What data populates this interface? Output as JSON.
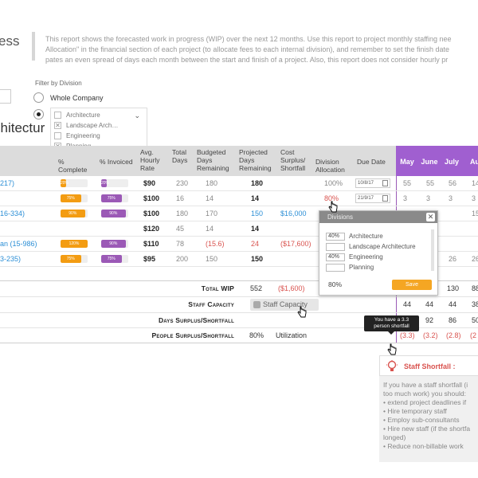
{
  "page": {
    "title": "ess",
    "description_lines": [
      "This report shows the forecasted work in progress (WIP) over the next 12 months. Use this report to project monthly staffing nee",
      "Allocation\" in the financial section of each project (to allocate fees to each internal division), and remember to set the finish date",
      "pates an even spread of days each month between the start and finish of a project. Also, this report does not consider hourly pr"
    ],
    "section_heading": "chitectur"
  },
  "filter": {
    "label": "Filter by Division",
    "whole_company": "Whole Company",
    "divisions": [
      {
        "label": "Architecture",
        "checked": false
      },
      {
        "label": "Landscape Arch…",
        "checked": true
      },
      {
        "label": "Engineering",
        "checked": false
      },
      {
        "label": "Planning",
        "checked": true
      }
    ]
  },
  "table": {
    "headers": {
      "pct_complete": "% Complete",
      "pct_invoiced": "% Invoiced",
      "hourly_rate": "Avg. Hourly Rate",
      "total_days": "Total Days",
      "budgeted_days": "Budgeted Days Remaining",
      "projected_days": "Projected Days Remaining",
      "cost_surplus": "Cost Surplus/ Shortfall",
      "division_alloc": "Division Allocation",
      "due_date": "Due Date"
    },
    "months": [
      "May",
      "June",
      "July",
      "Au"
    ],
    "rows": [
      {
        "project": "217)",
        "complete": "20%",
        "complete_val": 20,
        "invoiced": "20%",
        "invoiced_val": 20,
        "rate": "$90",
        "total": "230",
        "budgeted": "180",
        "projected": "180",
        "cost": "",
        "alloc": "100%",
        "due": "10/8/17",
        "m": [
          "55",
          "55",
          "56",
          "14"
        ]
      },
      {
        "project": "",
        "complete": "75%",
        "complete_val": 75,
        "invoiced": "75%",
        "invoiced_val": 75,
        "rate": "$100",
        "total": "16",
        "budgeted": "14",
        "projected": "14",
        "cost": "",
        "alloc": "80%",
        "due": "21/9/17",
        "m": [
          "3",
          "3",
          "3",
          "3"
        ]
      },
      {
        "project": "16-334)",
        "complete": "90%",
        "complete_val": 90,
        "invoiced": "90%",
        "invoiced_val": 90,
        "rate": "$100",
        "total": "180",
        "budgeted": "170",
        "projected": "150",
        "cost": "$16,000",
        "alloc": "",
        "due": "",
        "m": [
          "",
          "",
          "",
          "15"
        ]
      },
      {
        "project": "",
        "complete": "",
        "complete_val": 0,
        "invoiced": "",
        "invoiced_val": 0,
        "rate": "$120",
        "total": "45",
        "budgeted": "14",
        "projected": "14",
        "cost": "",
        "alloc": "",
        "due": "",
        "m": [
          "",
          "",
          "",
          ""
        ]
      },
      {
        "project": "an (15-986)",
        "complete": "120%",
        "complete_val": 100,
        "invoiced": "90%",
        "invoiced_val": 90,
        "rate": "$110",
        "total": "78",
        "budgeted": "(15.6)",
        "projected": "24",
        "cost": "($17,600)",
        "alloc": "",
        "due": "",
        "m": [
          "",
          "",
          "",
          ""
        ]
      },
      {
        "project": "3-235)",
        "complete": "75%",
        "complete_val": 75,
        "invoiced": "75%",
        "invoiced_val": 75,
        "rate": "$95",
        "total": "200",
        "budgeted": "150",
        "projected": "150",
        "cost": "",
        "alloc": "",
        "due": "",
        "m": [
          "",
          "",
          "26",
          "26"
        ]
      }
    ]
  },
  "summary": {
    "total_wip_label": "Total WIP",
    "total_wip": "552",
    "total_wip_cost": "($1,600)",
    "total_wip_months": [
      "",
      "",
      "130",
      "88"
    ],
    "staff_capacity_label": "Staff Capacity",
    "staff_capacity_button": "Staff Capacity",
    "staff_capacity_months": [
      "44",
      "44",
      "44",
      "38"
    ],
    "days_label": "Days Surplus/Shortfall",
    "days_months": [
      "",
      "92",
      "86",
      "50"
    ],
    "people_label": "People Surplus/Shortfall",
    "people_pct": "80%",
    "people_util": "Utilization",
    "people_months": [
      "(3.3)",
      "(3.2)",
      "(2.8)",
      "(2"
    ]
  },
  "divisions_popup": {
    "title": "Divisions",
    "rows": [
      {
        "pct": "40%",
        "label": "Architecture"
      },
      {
        "pct": "",
        "label": "Landscape Architecture"
      },
      {
        "pct": "40%",
        "label": "Engineering"
      },
      {
        "pct": "",
        "label": "Planning"
      }
    ],
    "total": "80%",
    "save": "Save"
  },
  "tooltip": {
    "line1": "You have a 3.3",
    "line2": "person shortfall"
  },
  "shortfall_panel": {
    "title": "Staff Shortfall :",
    "intro": "If you have a staff shortfall (i",
    "intro2": "too much work) you should:",
    "items": [
      "• extend project deadlines if",
      "• Hire temporary staff",
      "• Employ sub-consultants",
      "• Hire new staff (if the shortfa",
      "  longed)",
      "• Reduce non-billable work"
    ]
  },
  "colors": {
    "month_header": "#a05fd0",
    "orange": "#f39c12",
    "purple": "#9b59b6",
    "link_blue": "#2c8fd6",
    "negative_red": "#d9534f"
  }
}
